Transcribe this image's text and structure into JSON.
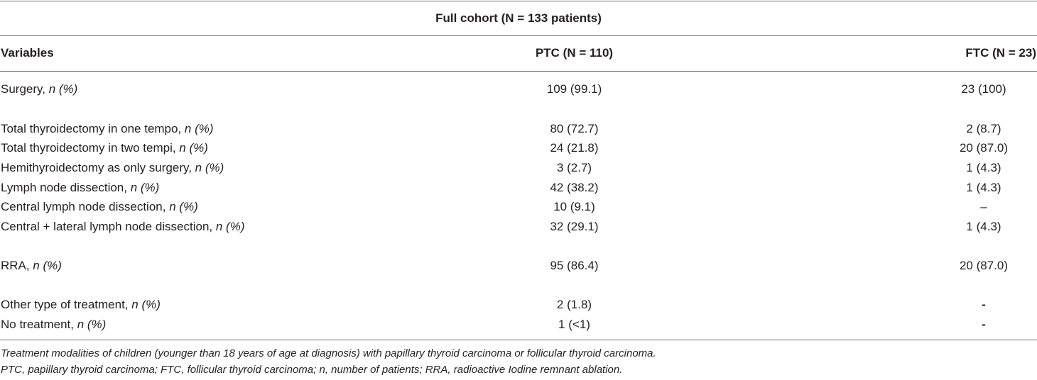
{
  "table": {
    "cohort_title": "Full cohort (N = 133 patients)",
    "headers": {
      "variables": "Variables",
      "ptc": "PTC (N = 110)",
      "ftc": "FTC (N = 23)"
    },
    "rows": [
      {
        "label": "Surgery, ",
        "unit": "n (%)",
        "ptc": "109 (99.1)",
        "ftc": "23 (100)"
      },
      {
        "label": "Total thyroidectomy in one tempo, ",
        "unit": "n (%)",
        "ptc": "80 (72.7)",
        "ftc": "2 (8.7)"
      },
      {
        "label": "Total thyroidectomy in two tempi, ",
        "unit": "n (%)",
        "ptc": "24 (21.8)",
        "ftc": "20 (87.0)"
      },
      {
        "label": "Hemithyroidectomy as only surgery, ",
        "unit": "n (%)",
        "ptc": "3 (2.7)",
        "ftc": "1 (4.3)"
      },
      {
        "label": "Lymph node dissection, ",
        "unit": "n (%)",
        "ptc": "42 (38.2)",
        "ftc": "1 (4.3)"
      },
      {
        "label": "Central lymph node dissection, ",
        "unit": "n (%)",
        "ptc": "10 (9.1)",
        "ftc": "–"
      },
      {
        "label": "Central + lateral lymph node dissection, ",
        "unit": "n (%)",
        "ptc": "32 (29.1)",
        "ftc": "1 (4.3)"
      },
      {
        "label": "RRA, ",
        "unit": "n (%)",
        "ptc": "95 (86.4)",
        "ftc": "20 (87.0)"
      },
      {
        "label": "Other type of treatment, ",
        "unit": "n (%)",
        "ptc": "2 (1.8)",
        "ftc": "-"
      },
      {
        "label": "No treatment, ",
        "unit": "n (%)",
        "ptc": "1 (<1)",
        "ftc": "-"
      }
    ],
    "footnotes": [
      "Treatment modalities of children (younger than 18 years of age at diagnosis) with papillary thyroid carcinoma or follicular thyroid carcinoma.",
      "PTC, papillary thyroid carcinoma; FTC, follicular thyroid carcinoma; n, number of patients; RRA, radioactive Iodine remnant ablation."
    ]
  }
}
